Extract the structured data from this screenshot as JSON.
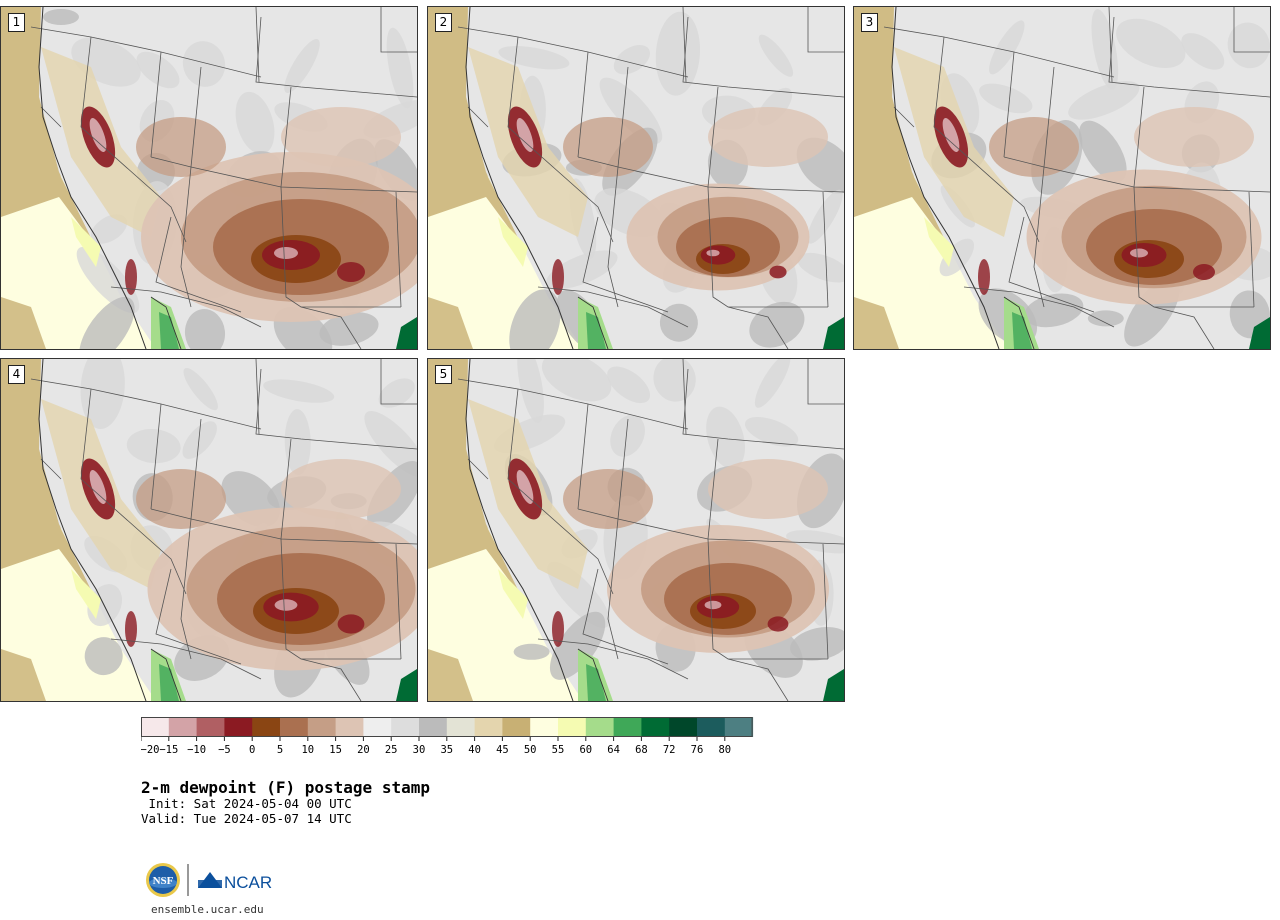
{
  "panels": [
    {
      "label": "1",
      "intensity": 1.0
    },
    {
      "label": "2",
      "intensity": 0.55
    },
    {
      "label": "3",
      "intensity": 0.75
    },
    {
      "label": "4",
      "intensity": 0.95
    },
    {
      "label": "5",
      "intensity": 0.7
    }
  ],
  "colorbar": {
    "colors": [
      "#f6e8ea",
      "#d3a3a7",
      "#b05f63",
      "#8b1a22",
      "#8a4513",
      "#aa7050",
      "#c59e86",
      "#ddc4b4",
      "#eeeeee",
      "#dddddd",
      "#bbbbbb",
      "#e3e3d5",
      "#e4d5ae",
      "#c8b074",
      "#fefee0",
      "#f5fbb2",
      "#a5dc8b",
      "#3fa858",
      "#006b34",
      "#00472a",
      "#1c5c5d",
      "#4d7f82"
    ],
    "ticks": [
      "−20",
      "−15",
      "−10",
      "−5",
      "0",
      "5",
      "10",
      "15",
      "20",
      "25",
      "30",
      "35",
      "40",
      "45",
      "50",
      "55",
      "60",
      "64",
      "68",
      "72",
      "76",
      "80"
    ]
  },
  "title": "2-m dewpoint (F) postage stamp",
  "init": " Init: Sat 2024-05-04 00 UTC",
  "valid": "Valid: Tue 2024-05-07 14 UTC",
  "logos": {
    "left": "NSF",
    "right": "NCAR"
  },
  "site": "ensemble.ucar.edu"
}
